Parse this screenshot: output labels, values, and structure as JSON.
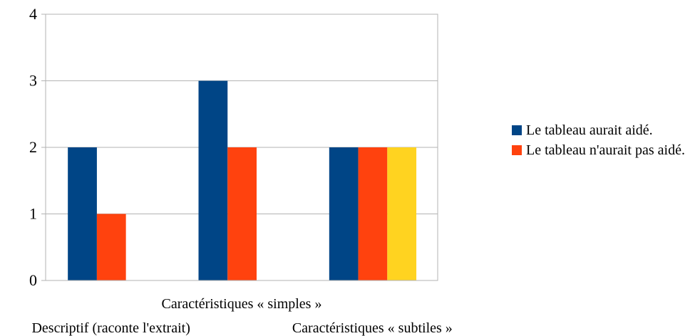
{
  "chart_data": {
    "type": "bar",
    "categories": [
      "Descriptif (raconte l'extrait)",
      "Caractéristiques « simples »",
      "Caractéristiques « subtiles »"
    ],
    "series": [
      {
        "name": "Le tableau aurait aidé.",
        "values": [
          2,
          3,
          2
        ]
      },
      {
        "name": "Le tableau n'aurait pas aidé.",
        "values": [
          1,
          2,
          2
        ]
      },
      {
        "values": [
          null,
          null,
          2
        ]
      }
    ],
    "colors": [
      "#004586",
      "#ff420e",
      "#ffd320"
    ],
    "ylim": [
      0,
      4
    ],
    "yticks": [
      "0",
      "1",
      "2",
      "3",
      "4"
    ],
    "grid": true,
    "legend_position": "right"
  }
}
